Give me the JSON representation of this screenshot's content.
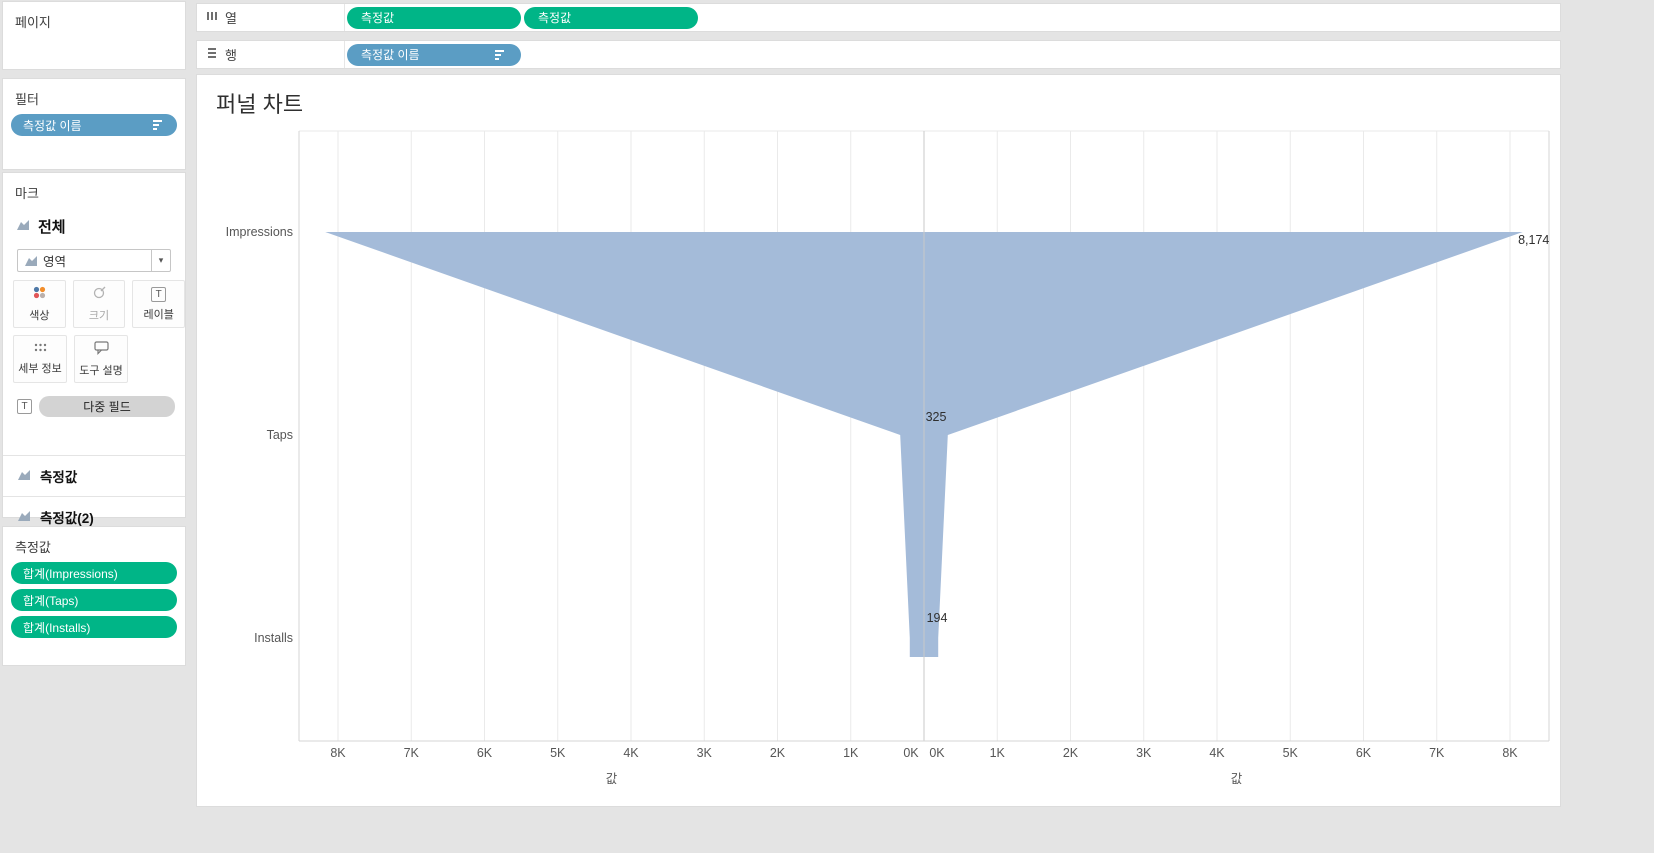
{
  "colors": {
    "green_pill": "#00b587",
    "blue_pill": "#5b9dc4",
    "funnel_fill": "#a4bbd9"
  },
  "icons": {
    "text_glyph": "T",
    "caret_down": "▾"
  },
  "sidebar": {
    "pages": {
      "title": "페이지"
    },
    "filters": {
      "title": "필터",
      "pill_label": "측정값 이름"
    },
    "marks": {
      "title": "마크",
      "all_label": "전체",
      "mark_type_value": "영역",
      "buttons": [
        "색상",
        "크기",
        "레이블",
        "세부 정보",
        "도구 설명"
      ],
      "label_field": "다중 필드",
      "cards": [
        "측정값",
        "측정값(2)"
      ]
    },
    "measures": {
      "title": "측정값",
      "pills": [
        "합계(Impressions)",
        "합계(Taps)",
        "합계(Installs)"
      ]
    }
  },
  "shelves": {
    "columns": {
      "label": "열",
      "pills": [
        "측정값",
        "측정값"
      ]
    },
    "rows": {
      "label": "행",
      "pill_label": "측정값 이름"
    }
  },
  "chart_data": {
    "type": "area",
    "variant": "mirrored-funnel",
    "title": "퍼널 차트",
    "categories": [
      "Impressions",
      "Taps",
      "Installs"
    ],
    "values": [
      8174,
      325,
      194
    ],
    "data_labels": [
      "8,174",
      "325",
      "194"
    ],
    "xlabel": "값",
    "x_tick_unit": 1000,
    "x_max_k": 8,
    "x_tick_labels_left": [
      "8K",
      "7K",
      "6K",
      "5K",
      "4K",
      "3K",
      "2K",
      "1K",
      "0K"
    ],
    "x_tick_labels_right": [
      "0K",
      "1K",
      "2K",
      "3K",
      "4K",
      "5K",
      "6K",
      "7K",
      "8K"
    ],
    "grid": true,
    "legend": "none"
  }
}
